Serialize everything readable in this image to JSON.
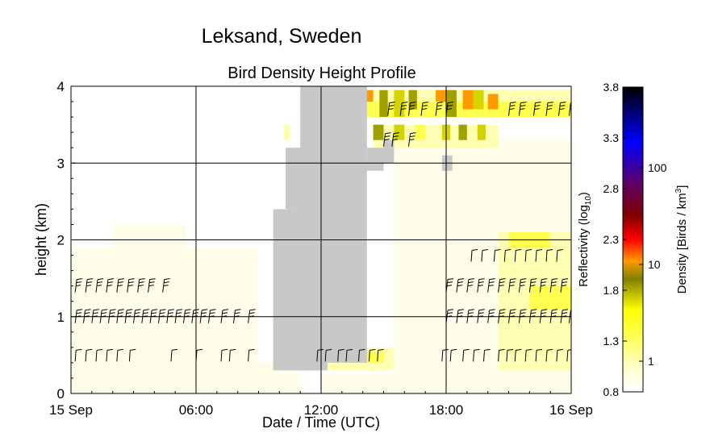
{
  "figure": {
    "title": "Leksand, Sweden",
    "subtitle": "Bird Density Height Profile"
  },
  "chart_data": {
    "type": "heatmap",
    "title": "Leksand, Sweden",
    "subtitle": "Bird Density Height Profile",
    "xlabel": "Date / Time (UTC)",
    "ylabel": "height (km)",
    "x_ticks": [
      "15 Sep",
      "06:00",
      "12:00",
      "18:00",
      "16 Sep"
    ],
    "x_tick_hours": [
      0,
      6,
      12,
      18,
      24
    ],
    "xlim_hours": [
      0,
      24
    ],
    "y_ticks": [
      "0",
      "1",
      "2",
      "3",
      "4"
    ],
    "y_tick_values": [
      0,
      1,
      2,
      3,
      4
    ],
    "ylim_km": [
      0,
      4
    ],
    "grid": true,
    "cell_height_km": 0.1,
    "colorbar": {
      "left_label": "Reflectivity (log",
      "left_label_sub": "10",
      "left_label_end": ")",
      "right_label": "Density [Birds / km",
      "right_label_sup": "3",
      "right_label_end": "]",
      "left_ticks": [
        "3.8",
        "3.3",
        "2.8",
        "2.3",
        "1.8",
        "1.3",
        "0.8"
      ],
      "left_tick_values": [
        3.8,
        3.3,
        2.8,
        2.3,
        1.8,
        1.3,
        0.8
      ],
      "right_ticks": [
        "1",
        "10",
        "100"
      ],
      "right_tick_values": [
        0.0,
        1.0,
        2.0
      ],
      "range": [
        0.8,
        3.8
      ],
      "colors": [
        "#ffffff",
        "#ffffcc",
        "#ffff66",
        "#ffff00",
        "#c8c800",
        "#8c8c00",
        "#ff9900",
        "#ff0000",
        "#660000",
        "#660066",
        "#0000ff",
        "#000066",
        "#000000"
      ]
    },
    "no_data_color": "#c8c8c8",
    "low_density_color": "#fefee8",
    "level_colors": [
      "#fefee8",
      "#ffffb4",
      "#ffff50",
      "#d4d400",
      "#a0a000",
      "#ff9a00"
    ],
    "masked_blocks": [
      {
        "start_hour": 9.7,
        "end_hour": 11.5,
        "low_km": 0.3,
        "high_km": 2.4
      },
      {
        "start_hour": 10.3,
        "end_hour": 11.5,
        "low_km": 2.4,
        "high_km": 3.2
      },
      {
        "start_hour": 11.0,
        "end_hour": 14.2,
        "low_km": 0.4,
        "high_km": 4.0
      },
      {
        "start_hour": 11.0,
        "end_hour": 12.3,
        "low_km": 0.3,
        "high_km": 2.8
      },
      {
        "start_hour": 12.3,
        "end_hour": 14.0,
        "low_km": 2.7,
        "high_km": 3.2
      },
      {
        "start_hour": 14.2,
        "end_hour": 15.0,
        "low_km": 2.9,
        "high_km": 3.2
      },
      {
        "start_hour": 15.0,
        "end_hour": 15.5,
        "low_km": 3.0,
        "high_km": 3.3
      },
      {
        "start_hour": 17.8,
        "end_hour": 18.3,
        "low_km": 2.9,
        "high_km": 3.1
      }
    ],
    "density_blocks": [
      {
        "start_hour": 0.0,
        "end_hour": 9.0,
        "low_km": 0.0,
        "high_km": 1.9,
        "level": 0
      },
      {
        "start_hour": 2.0,
        "end_hour": 5.5,
        "low_km": 1.9,
        "high_km": 2.2,
        "level": 0
      },
      {
        "start_hour": 9.0,
        "end_hour": 11.0,
        "low_km": 0.0,
        "high_km": 0.4,
        "level": 0
      },
      {
        "start_hour": 12.0,
        "end_hour": 24.0,
        "low_km": 0.0,
        "high_km": 0.25,
        "level": 0
      },
      {
        "start_hour": 12.0,
        "end_hour": 15.5,
        "low_km": 0.3,
        "high_km": 0.6,
        "level": 1
      },
      {
        "start_hour": 13.5,
        "end_hour": 15.0,
        "low_km": 0.4,
        "high_km": 0.55,
        "level": 2
      },
      {
        "start_hour": 15.5,
        "end_hour": 24.0,
        "low_km": 0.2,
        "high_km": 3.3,
        "level": 0
      },
      {
        "start_hour": 20.5,
        "end_hour": 24.0,
        "low_km": 0.3,
        "high_km": 2.1,
        "level": 1
      },
      {
        "start_hour": 21.0,
        "end_hour": 23.0,
        "low_km": 1.9,
        "high_km": 2.1,
        "level": 2
      },
      {
        "start_hour": 21.5,
        "end_hour": 24.0,
        "low_km": 0.9,
        "high_km": 1.7,
        "level": 1
      },
      {
        "start_hour": 22.0,
        "end_hour": 24.0,
        "low_km": 1.1,
        "high_km": 1.4,
        "level": 2
      },
      {
        "start_hour": 14.0,
        "end_hour": 24.0,
        "low_km": 3.6,
        "high_km": 3.95,
        "level": 2
      },
      {
        "start_hour": 14.0,
        "end_hour": 24.0,
        "low_km": 3.8,
        "high_km": 3.95,
        "level": 1
      },
      {
        "start_hour": 14.0,
        "end_hour": 14.5,
        "low_km": 3.8,
        "high_km": 3.95,
        "level": 5
      },
      {
        "start_hour": 14.8,
        "end_hour": 15.2,
        "low_km": 3.6,
        "high_km": 3.95,
        "level": 4
      },
      {
        "start_hour": 15.5,
        "end_hour": 16.0,
        "low_km": 3.6,
        "high_km": 3.95,
        "level": 3
      },
      {
        "start_hour": 16.2,
        "end_hour": 16.6,
        "low_km": 3.7,
        "high_km": 3.95,
        "level": 4
      },
      {
        "start_hour": 17.5,
        "end_hour": 18.0,
        "low_km": 3.8,
        "high_km": 3.95,
        "level": 5
      },
      {
        "start_hour": 18.0,
        "end_hour": 18.5,
        "low_km": 3.6,
        "high_km": 3.95,
        "level": 4
      },
      {
        "start_hour": 18.8,
        "end_hour": 19.3,
        "low_km": 3.7,
        "high_km": 3.95,
        "level": 5
      },
      {
        "start_hour": 19.3,
        "end_hour": 19.8,
        "low_km": 3.7,
        "high_km": 3.95,
        "level": 3
      },
      {
        "start_hour": 20.0,
        "end_hour": 20.5,
        "low_km": 3.7,
        "high_km": 3.9,
        "level": 5
      },
      {
        "start_hour": 14.5,
        "end_hour": 20.5,
        "low_km": 3.2,
        "high_km": 3.5,
        "level": 1
      },
      {
        "start_hour": 14.5,
        "end_hour": 15.0,
        "low_km": 3.3,
        "high_km": 3.5,
        "level": 4
      },
      {
        "start_hour": 15.5,
        "end_hour": 16.0,
        "low_km": 3.3,
        "high_km": 3.5,
        "level": 3
      },
      {
        "start_hour": 16.5,
        "end_hour": 17.0,
        "low_km": 3.3,
        "high_km": 3.5,
        "level": 2
      },
      {
        "start_hour": 17.8,
        "end_hour": 18.2,
        "low_km": 3.3,
        "high_km": 3.5,
        "level": 3
      },
      {
        "start_hour": 18.6,
        "end_hour": 19.0,
        "low_km": 3.3,
        "high_km": 3.5,
        "level": 4
      },
      {
        "start_hour": 19.5,
        "end_hour": 19.9,
        "low_km": 3.3,
        "high_km": 3.5,
        "level": 3
      },
      {
        "start_hour": 10.3,
        "end_hour": 10.6,
        "low_km": 2.6,
        "high_km": 2.8,
        "level": 2
      },
      {
        "start_hour": 11.0,
        "end_hour": 11.3,
        "low_km": 2.5,
        "high_km": 2.7,
        "level": 2
      },
      {
        "start_hour": 10.2,
        "end_hour": 10.5,
        "low_km": 1.3,
        "high_km": 1.5,
        "level": 2
      },
      {
        "start_hour": 10.8,
        "end_hour": 11.2,
        "low_km": 1.5,
        "high_km": 1.7,
        "level": 3
      },
      {
        "start_hour": 11.3,
        "end_hour": 11.6,
        "low_km": 1.3,
        "high_km": 1.6,
        "level": 2
      },
      {
        "start_hour": 11.0,
        "end_hour": 11.3,
        "low_km": 0.9,
        "high_km": 1.1,
        "level": 2
      },
      {
        "start_hour": 11.1,
        "end_hour": 11.3,
        "low_km": 0.8,
        "high_km": 0.9,
        "level": 4
      },
      {
        "start_hour": 11.5,
        "end_hour": 11.9,
        "low_km": 0.5,
        "high_km": 0.7,
        "level": 5
      },
      {
        "start_hour": 10.2,
        "end_hour": 10.5,
        "low_km": 3.3,
        "high_km": 3.5,
        "level": 1
      },
      {
        "start_hour": 11.0,
        "end_hour": 11.3,
        "low_km": 3.3,
        "high_km": 3.5,
        "level": 2
      }
    ],
    "wind_barb_rows": [
      {
        "height_km": 0.5,
        "hours": [
          0.2,
          0.7,
          1.2,
          1.7,
          2.2,
          2.8,
          4.8,
          6.0,
          7.2,
          7.6,
          8.5,
          11.8,
          12.2,
          12.8,
          13.2,
          13.8,
          14.3,
          14.7,
          17.8,
          18.2,
          18.8,
          19.3,
          19.8,
          20.5,
          20.9,
          21.3,
          21.8,
          22.3,
          22.8,
          23.3,
          23.8
        ],
        "style": "flag"
      },
      {
        "height_km": 1.0,
        "hours": [
          0.2,
          0.6,
          1.0,
          1.4,
          1.8,
          2.2,
          2.6,
          3.0,
          3.4,
          3.8,
          4.2,
          4.6,
          5.0,
          5.4,
          5.8,
          6.2,
          6.6,
          7.2,
          7.8,
          8.5,
          18.0,
          18.5,
          19.0,
          19.5,
          20.0,
          20.5,
          21.0,
          21.5,
          22.0,
          22.5,
          23.0,
          23.5,
          23.9
        ],
        "style": "feather"
      },
      {
        "height_km": 1.4,
        "hours": [
          0.2,
          0.7,
          1.2,
          1.7,
          2.2,
          2.7,
          3.2,
          3.7,
          4.4,
          18.0,
          18.5,
          19.0,
          19.5,
          20.0,
          20.5,
          21.0,
          21.5,
          22.0,
          22.5,
          23.0,
          23.5
        ],
        "style": "feather"
      },
      {
        "height_km": 1.8,
        "hours": [
          19.2,
          19.7,
          20.3,
          20.8,
          21.3,
          21.8,
          22.3,
          22.8,
          23.3
        ],
        "style": "flag"
      },
      {
        "height_km": 3.3,
        "hours": [
          15.0,
          15.4,
          16.2
        ],
        "style": "feather"
      },
      {
        "height_km": 3.7,
        "hours": [
          15.2,
          15.8,
          16.2,
          16.8,
          17.5,
          18.0,
          21.0,
          21.5,
          22.2,
          22.8,
          23.4,
          23.9
        ],
        "style": "feather"
      }
    ]
  }
}
